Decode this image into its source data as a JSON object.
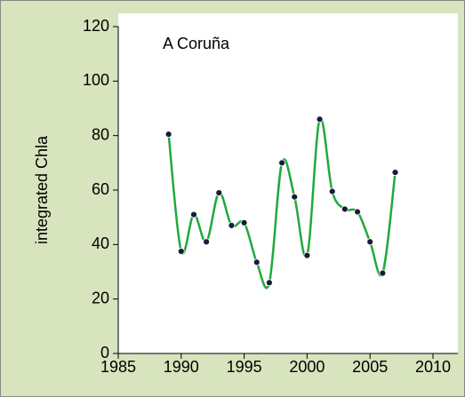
{
  "chart_data": {
    "type": "line",
    "annotation": "A Coruña",
    "y_label": "integrated Chla",
    "x": [
      1989,
      1990,
      1991,
      1992,
      1993,
      1994,
      1995,
      1996,
      1997,
      1998,
      1999,
      2000,
      2001,
      2002,
      2003,
      2004,
      2005,
      2006,
      2007
    ],
    "series": [
      {
        "color": "#1faa3c",
        "marker_color": "#1a1a3a",
        "values": [
          80.5,
          37.5,
          51,
          41,
          59,
          47,
          48,
          33.5,
          26,
          70,
          57.5,
          36,
          86,
          59.5,
          53,
          52,
          41,
          29.5,
          66.5
        ]
      }
    ],
    "xlim": [
      1985,
      2010
    ],
    "xticks": [
      1985,
      1990,
      1995,
      2000,
      2005,
      2010
    ],
    "ylim": [
      0,
      120
    ],
    "yticks": [
      0,
      20,
      40,
      60,
      80,
      100,
      120
    ],
    "smooth": true
  }
}
